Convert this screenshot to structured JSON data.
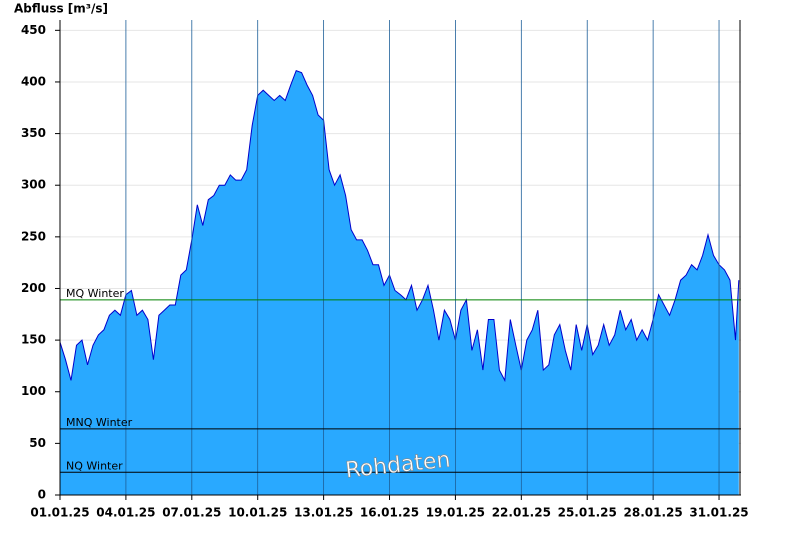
{
  "chart_data": {
    "type": "area",
    "y_label": "Abfluss [m³/s]",
    "watermark": "Rohdaten",
    "color": "#29a9ff",
    "line_color": "#0000cc",
    "x": [
      0,
      0.25,
      0.5,
      0.75,
      1,
      1.25,
      1.5,
      1.75,
      2,
      2.25,
      2.5,
      2.75,
      3,
      3.25,
      3.5,
      3.75,
      4,
      4.25,
      4.5,
      4.75,
      5,
      5.25,
      5.5,
      5.75,
      6,
      6.25,
      6.5,
      6.75,
      7,
      7.25,
      7.5,
      7.75,
      8,
      8.25,
      8.5,
      8.75,
      9,
      9.25,
      9.5,
      9.75,
      10,
      10.25,
      10.5,
      10.75,
      11,
      11.25,
      11.5,
      11.75,
      12,
      12.25,
      12.5,
      12.75,
      13,
      13.25,
      13.5,
      13.75,
      14,
      14.25,
      14.5,
      14.75,
      15,
      15.25,
      15.5,
      15.75,
      16,
      16.25,
      16.5,
      16.75,
      17,
      17.25,
      17.5,
      17.75,
      18,
      18.25,
      18.5,
      18.75,
      19,
      19.25,
      19.5,
      19.75,
      20,
      20.25,
      20.5,
      20.75,
      21,
      21.25,
      21.5,
      21.75,
      22,
      22.25,
      22.5,
      22.75,
      23,
      23.25,
      23.5,
      23.75,
      24,
      24.25,
      24.5,
      24.75,
      25,
      25.25,
      25.5,
      25.75,
      26,
      26.25,
      26.5,
      26.75,
      27,
      27.25,
      27.5,
      27.75,
      28,
      28.25,
      28.5,
      28.75,
      29,
      29.25,
      29.5,
      29.75,
      30,
      30.25,
      30.5,
      30.75,
      30.9
    ],
    "values": [
      148,
      131,
      111,
      145,
      150,
      126,
      145,
      155,
      160,
      174,
      179,
      174,
      194,
      198,
      174,
      179,
      170,
      131,
      174,
      179,
      184,
      184,
      213,
      218,
      247,
      281,
      261,
      286,
      290,
      300,
      300,
      310,
      305,
      305,
      315,
      358,
      387,
      392,
      387,
      382,
      387,
      382,
      397,
      411,
      409,
      397,
      387,
      368,
      363,
      315,
      300,
      310,
      290,
      257,
      247,
      247,
      237,
      223,
      223,
      203,
      213,
      198,
      194,
      189,
      203,
      179,
      189,
      203,
      179,
      150,
      179,
      170,
      150,
      179,
      189,
      140,
      160,
      121,
      170,
      170,
      121,
      111,
      170,
      145,
      121,
      150,
      160,
      179,
      121,
      126,
      155,
      165,
      140,
      121,
      165,
      140,
      165,
      136,
      145,
      165,
      145,
      155,
      179,
      160,
      170,
      150,
      160,
      150,
      170,
      194,
      184,
      174,
      189,
      208,
      213,
      223,
      218,
      232,
      252,
      232,
      223,
      218,
      208,
      150,
      208
    ],
    "xlim": [
      0,
      31
    ],
    "ylim": [
      0,
      460
    ],
    "xticks": [
      {
        "value": 0,
        "label": "01.01.25"
      },
      {
        "value": 3,
        "label": "04.01.25"
      },
      {
        "value": 6,
        "label": "07.01.25"
      },
      {
        "value": 9,
        "label": "10.01.25"
      },
      {
        "value": 12,
        "label": "13.01.25"
      },
      {
        "value": 15,
        "label": "16.01.25"
      },
      {
        "value": 18,
        "label": "19.01.25"
      },
      {
        "value": 21,
        "label": "22.01.25"
      },
      {
        "value": 24,
        "label": "25.01.25"
      },
      {
        "value": 27,
        "label": "28.01.25"
      },
      {
        "value": 30,
        "label": "31.01.25"
      }
    ],
    "yticks": [
      0,
      50,
      100,
      150,
      200,
      250,
      300,
      350,
      400,
      450
    ],
    "grid": true,
    "reference_lines": [
      {
        "label": "MQ Winter",
        "value": 189,
        "color": "#008000"
      },
      {
        "label": "MNQ Winter",
        "value": 64,
        "color": "#000000"
      },
      {
        "label": "NQ Winter",
        "value": 22,
        "color": "#000000"
      }
    ]
  }
}
